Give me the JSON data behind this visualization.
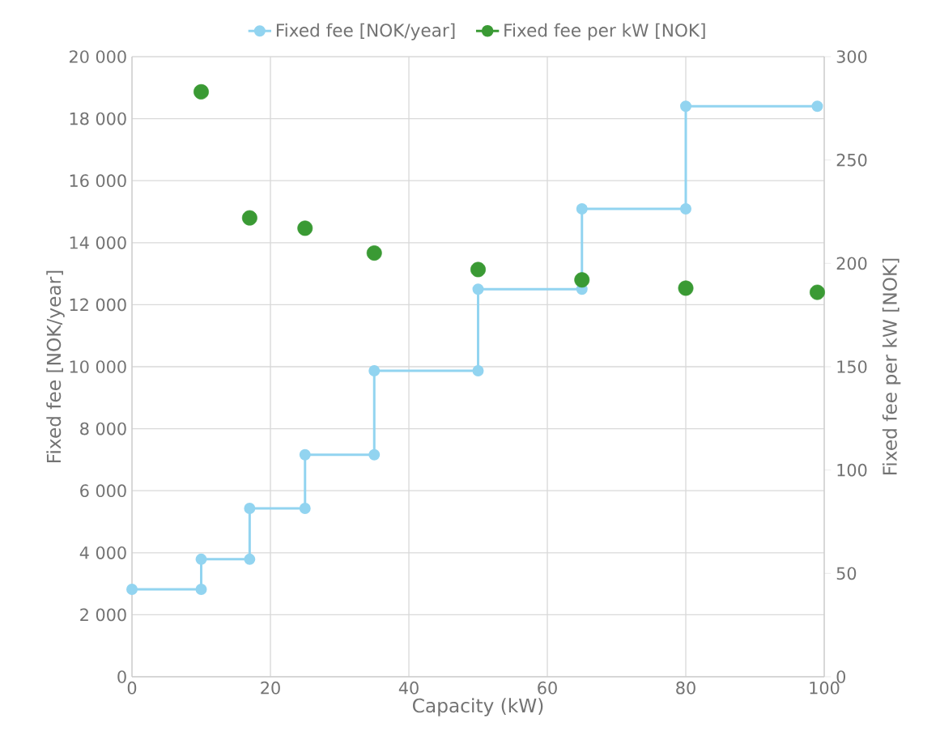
{
  "chart_data": {
    "type": "line",
    "xlabel": "Capacity (kW)",
    "ylabel": "Fixed fee [NOK/year]",
    "y2label": "Fixed fee per kW [NOK]",
    "xlim": [
      0,
      100
    ],
    "xticks": [
      0,
      20,
      40,
      60,
      80,
      100
    ],
    "ylim": [
      0,
      20000
    ],
    "yticks": [
      {
        "value": 0,
        "label": "0"
      },
      {
        "value": 2000,
        "label": "2 000"
      },
      {
        "value": 4000,
        "label": "4 000"
      },
      {
        "value": 6000,
        "label": "6 000"
      },
      {
        "value": 8000,
        "label": "8 000"
      },
      {
        "value": 10000,
        "label": "10 000"
      },
      {
        "value": 12000,
        "label": "12 000"
      },
      {
        "value": 14000,
        "label": "14 000"
      },
      {
        "value": 16000,
        "label": "16 000"
      },
      {
        "value": 18000,
        "label": "18 000"
      },
      {
        "value": 20000,
        "label": "20 000"
      }
    ],
    "y2lim": [
      0,
      300
    ],
    "y2ticks": [
      0,
      50,
      100,
      150,
      200,
      250,
      300
    ],
    "grid": true,
    "legend": "top",
    "marker": "circle",
    "series": [
      {
        "name": "Fixed fee [NOK/year]",
        "color": "#92d4f0",
        "x": [
          0,
          10,
          10,
          17,
          17,
          25,
          25,
          35,
          35,
          50,
          50,
          65,
          65,
          80,
          80,
          99
        ],
        "values": [
          2820,
          2820,
          3790,
          3790,
          5430,
          5430,
          7160,
          7160,
          9870,
          9870,
          12500,
          12500,
          15090,
          15090,
          18400,
          18400
        ]
      },
      {
        "name": "Fixed fee per kW [NOK]",
        "type": "scatter",
        "axis": "y2",
        "color": "#3a9a34",
        "x": [
          10,
          17,
          25,
          35,
          50,
          65,
          80,
          99
        ],
        "values": [
          283,
          222,
          217,
          205,
          197,
          192,
          188,
          186
        ]
      }
    ]
  }
}
